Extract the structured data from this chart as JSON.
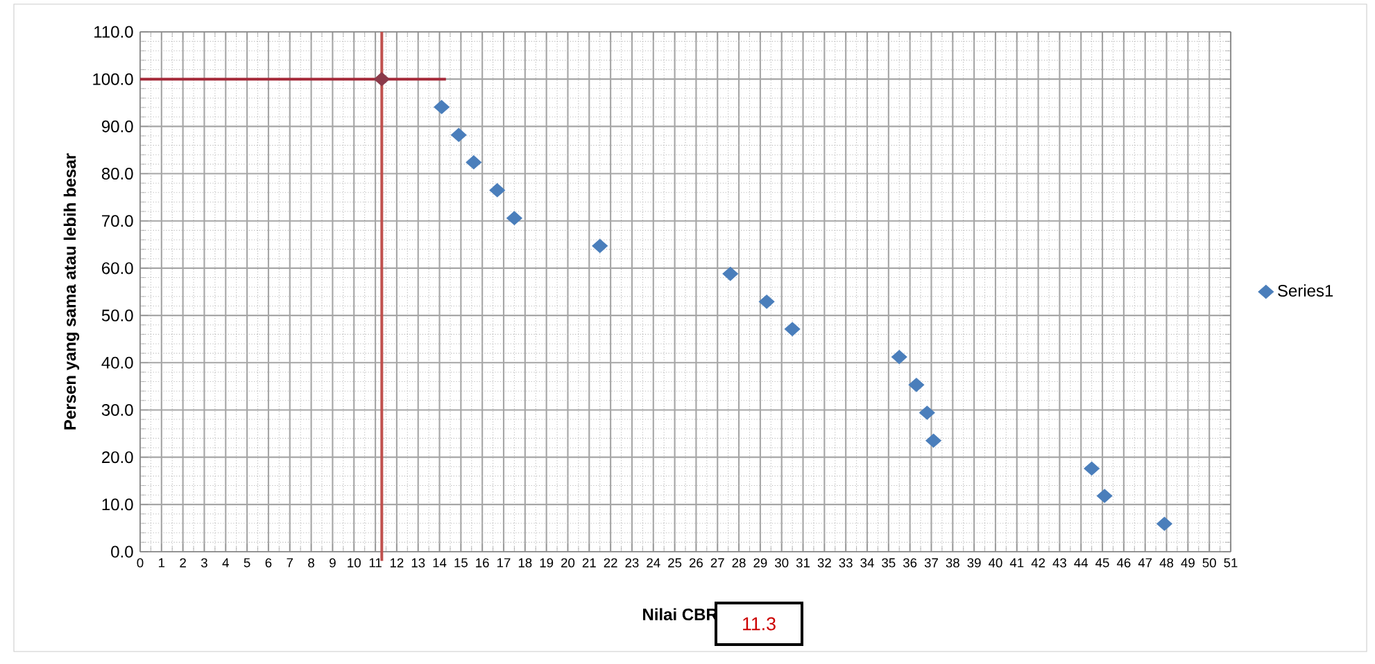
{
  "chart_data": {
    "type": "scatter",
    "xlabel": "Nilai CBR",
    "ylabel": "Persen yang sama atau lebih besar",
    "annotations": [
      "11.3"
    ],
    "series": [
      {
        "name": "Series1",
        "color": "#4a7ebb",
        "x": [
          14.1,
          14.9,
          15.6,
          16.7,
          17.5,
          21.5,
          27.6,
          29.3,
          30.5,
          35.5,
          36.3,
          36.8,
          37.1,
          44.5,
          45.1,
          47.9
        ],
        "values": [
          94.1,
          88.2,
          82.4,
          76.5,
          70.6,
          64.7,
          58.8,
          52.9,
          47.1,
          41.2,
          35.3,
          29.4,
          23.5,
          17.6,
          11.8,
          5.9
        ]
      },
      {
        "type": "line",
        "marker": "none",
        "color": "#a52a3a",
        "x": [
          0,
          14.3
        ],
        "values": [
          100,
          100
        ]
      },
      {
        "color": "#8b3a4a",
        "x": [
          11.3
        ],
        "values": [
          100
        ]
      }
    ],
    "ref_lines": [
      {
        "axis": "x",
        "value": 11.3,
        "color": "#c0504d"
      }
    ],
    "xlim": [
      0,
      51
    ],
    "xticks": [
      0,
      1,
      2,
      3,
      4,
      5,
      6,
      7,
      8,
      9,
      10,
      11,
      12,
      13,
      14,
      15,
      16,
      17,
      18,
      19,
      20,
      21,
      22,
      23,
      24,
      25,
      26,
      27,
      28,
      29,
      30,
      31,
      32,
      33,
      34,
      35,
      36,
      37,
      38,
      39,
      40,
      41,
      42,
      43,
      44,
      45,
      46,
      47,
      48,
      49,
      50,
      51
    ],
    "ylim": [
      0,
      110
    ],
    "yticks": [
      {
        "value": 0,
        "label": "0.0"
      },
      {
        "value": 10,
        "label": "10.0"
      },
      {
        "value": 20,
        "label": "20.0"
      },
      {
        "value": 30,
        "label": "30.0"
      },
      {
        "value": 40,
        "label": "40.0"
      },
      {
        "value": 50,
        "label": "50.0"
      },
      {
        "value": 60,
        "label": "60.0"
      },
      {
        "value": 70,
        "label": "70.0"
      },
      {
        "value": 80,
        "label": "80.0"
      },
      {
        "value": 90,
        "label": "90.0"
      },
      {
        "value": 100,
        "label": "100.0"
      },
      {
        "value": 110,
        "label": "110.0"
      }
    ],
    "grid": true,
    "legend": "right",
    "marker": "diamond"
  }
}
